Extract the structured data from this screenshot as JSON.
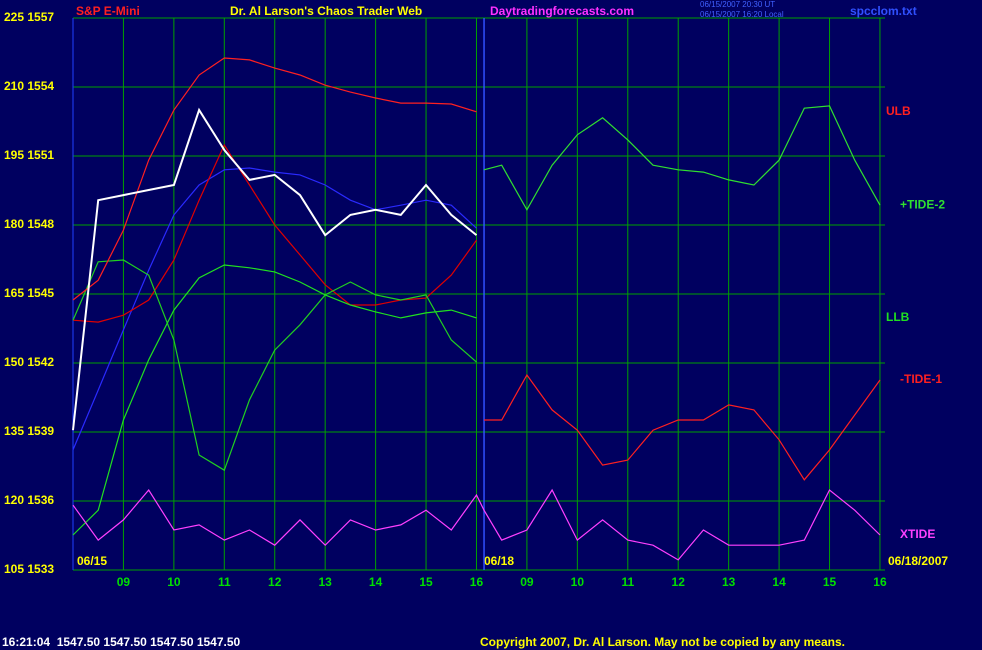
{
  "header": {
    "left": "S&P E-Mini",
    "title": "Dr. Al Larson's Chaos Trader Web",
    "site": "Daytradingforecasts.com",
    "time_ut": "06/15/2007 20:30 UT",
    "time_local": "06/15/2007 16:20 Local",
    "file": "spcclom.txt"
  },
  "chart_data": {
    "type": "line",
    "xlim": [
      0,
      16.1
    ],
    "xticks": [
      {
        "value": 1,
        "label": "09"
      },
      {
        "value": 2,
        "label": "10"
      },
      {
        "value": 3,
        "label": "11"
      },
      {
        "value": 4,
        "label": "12"
      },
      {
        "value": 5,
        "label": "13"
      },
      {
        "value": 6,
        "label": "14"
      },
      {
        "value": 7,
        "label": "15"
      },
      {
        "value": 8,
        "label": "16"
      },
      {
        "value": 9,
        "label": "09"
      },
      {
        "value": 10,
        "label": "10"
      },
      {
        "value": 11,
        "label": "11"
      },
      {
        "value": 12,
        "label": "12"
      },
      {
        "value": 13,
        "label": "13"
      },
      {
        "value": 14,
        "label": "14"
      },
      {
        "value": 15,
        "label": "15"
      },
      {
        "value": 16,
        "label": "16"
      }
    ],
    "ylim": [
      105,
      225
    ],
    "yticks": [
      {
        "value": 225,
        "label": "225 1557"
      },
      {
        "value": 210,
        "label": "210 1554"
      },
      {
        "value": 195,
        "label": "195 1551"
      },
      {
        "value": 180,
        "label": "180 1548"
      },
      {
        "value": 165,
        "label": "165 1545"
      },
      {
        "value": 150,
        "label": "150 1542"
      },
      {
        "value": 135,
        "label": "135 1539"
      },
      {
        "value": 120,
        "label": "120 1536"
      },
      {
        "value": 105,
        "label": "105 1533"
      }
    ],
    "grid": true,
    "session_break_x": 8.15,
    "date_labels": [
      "06/15",
      "06/18",
      "06/18/2007"
    ],
    "x": [
      0,
      0.5,
      1,
      1.5,
      2,
      2.5,
      3,
      3.5,
      4,
      4.5,
      5,
      5.5,
      6,
      6.5,
      7,
      7.5,
      8,
      8.15,
      8.5,
      9,
      9.5,
      10,
      10.5,
      11,
      11.5,
      12,
      12.5,
      13,
      13.5,
      14,
      14.5,
      15,
      15.5,
      16
    ],
    "series": [
      {
        "color": "#2a2aff",
        "values": [
          131.1,
          144.1,
          157.2,
          170.2,
          182.2,
          188.7,
          192.0,
          192.4,
          191.5,
          190.9,
          188.7,
          185.4,
          183.3,
          184.3,
          185.4,
          184.3,
          179.3,
          null,
          null,
          null,
          null,
          null,
          null,
          null,
          null,
          null,
          null,
          null,
          null,
          null,
          null,
          null,
          null,
          null
        ]
      },
      {
        "color": "#e00000",
        "values": [
          159.3,
          158.9,
          160.4,
          163.7,
          172.4,
          185.4,
          197.4,
          188.7,
          180.0,
          173.5,
          167.0,
          162.6,
          162.6,
          163.7,
          164.1,
          169.1,
          176.7,
          null,
          null,
          null,
          null,
          null,
          null,
          null,
          null,
          null,
          null,
          null,
          null,
          null,
          null,
          null,
          null,
          null
        ]
      },
      {
        "color": "#20d020",
        "values": [
          159.3,
          172.0,
          172.4,
          169.1,
          155.0,
          130.0,
          126.7,
          142.0,
          152.8,
          158.3,
          164.8,
          167.6,
          164.8,
          163.7,
          164.8,
          155.0,
          150.2,
          null,
          null,
          null,
          null,
          null,
          null,
          null,
          null,
          null,
          null,
          null,
          null,
          null,
          null,
          null,
          null,
          null
        ]
      },
      {
        "name": "ULB",
        "color": "#ff2020",
        "values": [
          163.7,
          168.0,
          178.9,
          194.1,
          205.0,
          212.6,
          216.3,
          215.9,
          214.1,
          212.6,
          210.4,
          208.9,
          207.6,
          206.5,
          206.5,
          206.3,
          204.6,
          null,
          null,
          null,
          null,
          null,
          null,
          null,
          null,
          null,
          null,
          null,
          null,
          null,
          null,
          null,
          null,
          null
        ]
      },
      {
        "name": "LLB",
        "color": "#20e020",
        "values": [
          112.6,
          118.0,
          137.6,
          150.7,
          161.5,
          168.5,
          171.3,
          170.7,
          169.8,
          167.6,
          164.8,
          162.6,
          161.1,
          159.8,
          160.9,
          161.5,
          159.8,
          null,
          null,
          null,
          null,
          null,
          null,
          null,
          null,
          null,
          null,
          null,
          null,
          null,
          null,
          null,
          null,
          null
        ]
      },
      {
        "color": "#ffffff",
        "values": [
          135.4,
          185.4,
          186.5,
          187.6,
          188.7,
          205.0,
          196.3,
          189.8,
          190.9,
          186.5,
          177.8,
          182.2,
          183.3,
          182.2,
          188.7,
          182.2,
          177.8,
          null,
          null,
          null,
          null,
          null,
          null,
          null,
          null,
          null,
          null,
          null,
          null,
          null,
          null,
          null,
          null,
          null
        ]
      },
      {
        "name": "+TIDE-2",
        "color": "#30e030",
        "values": [
          null,
          null,
          null,
          null,
          null,
          null,
          null,
          null,
          null,
          null,
          null,
          null,
          null,
          null,
          null,
          null,
          null,
          192.0,
          193.0,
          183.3,
          193.0,
          199.6,
          203.3,
          198.5,
          193.0,
          192.0,
          191.5,
          189.8,
          188.7,
          194.1,
          205.4,
          205.9,
          194.1,
          184.3
        ]
      },
      {
        "name": "-TIDE-1",
        "color": "#ff2020",
        "values": [
          null,
          null,
          null,
          null,
          null,
          null,
          null,
          null,
          null,
          null,
          null,
          null,
          null,
          null,
          null,
          null,
          null,
          137.6,
          137.6,
          147.4,
          139.8,
          135.4,
          127.8,
          128.9,
          135.4,
          137.6,
          137.6,
          140.9,
          139.8,
          133.3,
          124.6,
          131.1,
          138.7,
          146.3
        ]
      },
      {
        "name": "XTIDE",
        "color": "#ff40ff",
        "values": [
          119.1,
          111.5,
          115.9,
          122.4,
          113.7,
          114.8,
          111.5,
          113.7,
          110.4,
          115.9,
          110.4,
          115.9,
          113.7,
          114.8,
          118.0,
          113.7,
          121.3,
          118.0,
          111.5,
          113.7,
          122.4,
          111.5,
          115.9,
          111.5,
          110.4,
          107.2,
          113.7,
          110.4,
          110.4,
          110.4,
          111.5,
          122.4,
          118.0,
          112.6
        ]
      }
    ]
  },
  "footer": {
    "quote": "16:21:04  1547.50 1547.50 1547.50 1547.50",
    "copyright": "Copyright 2007, Dr. Al Larson. May not be copied by any means."
  }
}
